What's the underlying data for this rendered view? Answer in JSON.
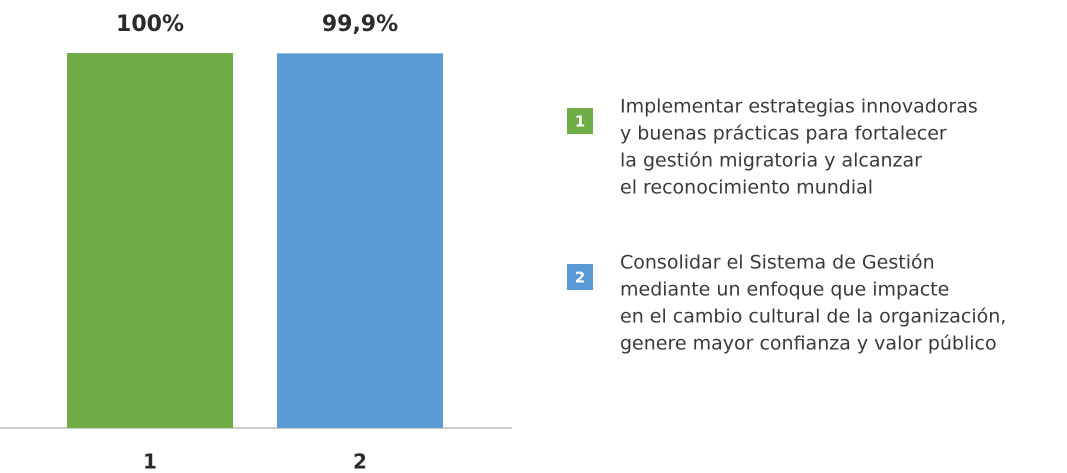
{
  "chart_data": {
    "type": "bar",
    "categories": [
      "1",
      "2"
    ],
    "values": [
      100,
      99.9
    ],
    "value_labels": [
      "100%",
      "99,9%"
    ],
    "colors": [
      "#70ad47",
      "#5b9bd5"
    ],
    "ylim": [
      0,
      100
    ],
    "legend": [
      {
        "lines": [
          "Implementar estrategias innovadoras",
          "y buenas prácticas para fortalecer",
          "la gestión migratoria y alcanzar",
          "el reconocimiento mundial"
        ]
      },
      {
        "lines": [
          "Consolidar el Sistema de Gestión",
          "mediante un enfoque que impacte",
          "en el cambio cultural de la organización,",
          "genere mayor confianza y valor público"
        ]
      }
    ]
  }
}
